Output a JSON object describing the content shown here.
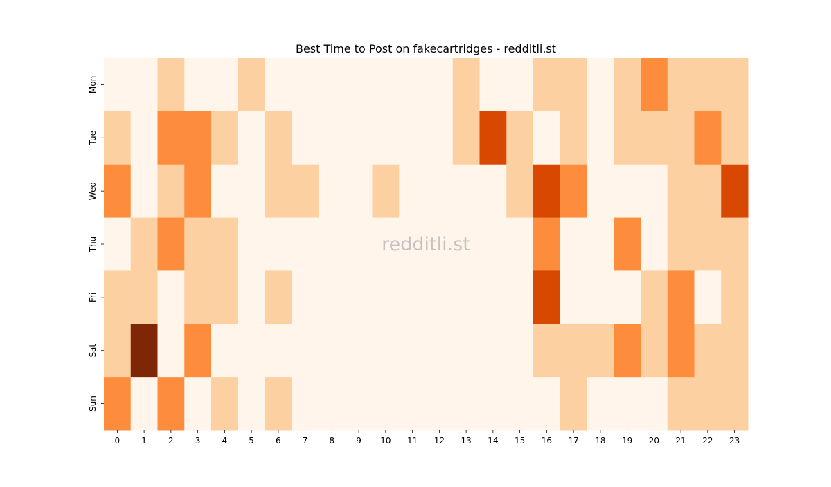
{
  "chart_data": {
    "type": "heatmap",
    "title": "Best Time to Post on fakecartridges - redditli.st",
    "watermark": "redditli.st",
    "x": [
      0,
      1,
      2,
      3,
      4,
      5,
      6,
      7,
      8,
      9,
      10,
      11,
      12,
      13,
      14,
      15,
      16,
      17,
      18,
      19,
      20,
      21,
      22,
      23
    ],
    "categories": [
      "Mon",
      "Tue",
      "Wed",
      "Thu",
      "Fri",
      "Sat",
      "Sun"
    ],
    "colors": [
      "#fff5eb",
      "#fdd0a2",
      "#fd8d3c",
      "#d94801",
      "#7f2704"
    ],
    "values": [
      [
        0,
        0,
        1,
        0,
        0,
        1,
        0,
        0,
        0,
        0,
        0,
        0,
        0,
        1,
        0,
        0,
        1,
        1,
        0,
        1,
        2,
        1,
        1,
        1
      ],
      [
        1,
        0,
        2,
        2,
        1,
        0,
        1,
        0,
        0,
        0,
        0,
        0,
        0,
        1,
        3,
        1,
        0,
        1,
        0,
        1,
        1,
        1,
        2,
        1
      ],
      [
        2,
        0,
        1,
        2,
        0,
        0,
        1,
        1,
        0,
        0,
        1,
        0,
        0,
        0,
        0,
        1,
        3,
        2,
        0,
        0,
        0,
        1,
        1,
        3
      ],
      [
        0,
        1,
        2,
        1,
        1,
        0,
        0,
        0,
        0,
        0,
        0,
        0,
        0,
        0,
        0,
        0,
        2,
        0,
        0,
        2,
        0,
        1,
        1,
        1
      ],
      [
        1,
        1,
        0,
        1,
        1,
        0,
        1,
        0,
        0,
        0,
        0,
        0,
        0,
        0,
        0,
        0,
        3,
        0,
        0,
        0,
        1,
        2,
        0,
        1
      ],
      [
        1,
        4,
        0,
        2,
        0,
        0,
        0,
        0,
        0,
        0,
        0,
        0,
        0,
        0,
        0,
        0,
        1,
        1,
        1,
        2,
        1,
        2,
        1,
        1
      ],
      [
        2,
        0,
        2,
        0,
        1,
        0,
        1,
        0,
        0,
        0,
        0,
        0,
        0,
        0,
        0,
        0,
        0,
        1,
        0,
        0,
        0,
        1,
        1,
        1
      ]
    ]
  }
}
